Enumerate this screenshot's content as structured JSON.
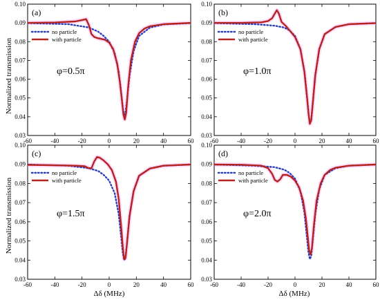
{
  "figure": {
    "ylabel": "Normalized transmission",
    "xlabel": "Δδ (MHz)"
  },
  "colors": {
    "no_particle": "#2b40b8",
    "with_particle": "#b5231f",
    "with_particle_glow": "#ff8cf0"
  },
  "chart_data": [
    {
      "type": "line",
      "panel": "(a)",
      "annotation": "φ=0.5π",
      "xlim": [
        -60,
        60
      ],
      "ylim": [
        0.03,
        0.1
      ],
      "xticks": [
        -60,
        -40,
        -20,
        0,
        20,
        40,
        60
      ],
      "yticks": [
        0.03,
        0.04,
        0.05,
        0.06,
        0.07,
        0.08,
        0.09,
        0.1
      ],
      "legend": "upper-left",
      "series": [
        {
          "name": "no particle",
          "style": "dotted",
          "x": [
            -60,
            -30,
            -15,
            -8,
            -4,
            0,
            4,
            7,
            9,
            10,
            11,
            12,
            13,
            15,
            18,
            22,
            30,
            40,
            60
          ],
          "y": [
            0.0899,
            0.0893,
            0.0876,
            0.0853,
            0.083,
            0.08,
            0.074,
            0.064,
            0.052,
            0.045,
            0.041,
            0.042,
            0.048,
            0.062,
            0.075,
            0.083,
            0.0875,
            0.0892,
            0.0899
          ]
        },
        {
          "name": "with particle",
          "style": "solid",
          "x": [
            -60,
            -40,
            -25,
            -20,
            -17,
            -15,
            -13,
            -11,
            -9,
            -6,
            -3,
            0,
            3,
            6,
            8,
            9.5,
            10.5,
            11.5,
            12.5,
            14,
            16,
            19,
            22,
            26,
            30,
            40,
            60
          ],
          "y": [
            0.09,
            0.0902,
            0.0908,
            0.0915,
            0.092,
            0.089,
            0.084,
            0.0825,
            0.082,
            0.0815,
            0.081,
            0.0795,
            0.076,
            0.068,
            0.058,
            0.048,
            0.041,
            0.0385,
            0.042,
            0.056,
            0.07,
            0.08,
            0.0845,
            0.087,
            0.0882,
            0.0893,
            0.09
          ]
        }
      ]
    },
    {
      "type": "line",
      "panel": "(b)",
      "annotation": "φ=1.0π",
      "xlim": [
        -60,
        60
      ],
      "ylim": [
        0.03,
        0.1
      ],
      "xticks": [
        -60,
        -40,
        -20,
        0,
        20,
        40,
        60
      ],
      "yticks": [
        0.03,
        0.04,
        0.05,
        0.06,
        0.07,
        0.08,
        0.09,
        0.1
      ],
      "legend": "upper-left",
      "series": [
        {
          "name": "no particle",
          "style": "dotted",
          "x": [
            -60,
            -30,
            -15,
            -8,
            -4,
            0,
            4,
            7,
            9,
            10,
            11,
            12,
            13,
            15,
            18,
            22,
            30,
            40,
            60
          ],
          "y": [
            0.0899,
            0.0893,
            0.0885,
            0.0875,
            0.086,
            0.083,
            0.076,
            0.064,
            0.05,
            0.042,
            0.0365,
            0.038,
            0.046,
            0.062,
            0.076,
            0.084,
            0.0878,
            0.0893,
            0.0899
          ]
        },
        {
          "name": "with particle",
          "style": "solid",
          "x": [
            -60,
            -40,
            -25,
            -20,
            -17,
            -15,
            -13.5,
            -12,
            -10,
            -7,
            -4,
            0,
            4,
            7,
            9,
            10,
            11,
            12,
            13,
            15,
            18,
            22,
            30,
            40,
            60
          ],
          "y": [
            0.09,
            0.09,
            0.0903,
            0.091,
            0.0925,
            0.095,
            0.0968,
            0.095,
            0.0905,
            0.0885,
            0.086,
            0.0825,
            0.076,
            0.064,
            0.05,
            0.042,
            0.0362,
            0.038,
            0.046,
            0.062,
            0.076,
            0.084,
            0.0878,
            0.0893,
            0.0899
          ]
        }
      ]
    },
    {
      "type": "line",
      "panel": "(c)",
      "annotation": "φ=1.5π",
      "xlim": [
        -60,
        60
      ],
      "ylim": [
        0.03,
        0.1
      ],
      "xticks": [
        -60,
        -40,
        -20,
        0,
        20,
        40,
        60
      ],
      "yticks": [
        0.03,
        0.04,
        0.05,
        0.06,
        0.07,
        0.08,
        0.09,
        0.1
      ],
      "legend": "upper-left",
      "series": [
        {
          "name": "no particle",
          "style": "dotted",
          "x": [
            -60,
            -30,
            -15,
            -8,
            -4,
            0,
            4,
            7,
            9,
            10,
            11,
            12,
            13,
            15,
            18,
            22,
            30,
            40,
            60
          ],
          "y": [
            0.0899,
            0.0893,
            0.088,
            0.0865,
            0.0845,
            0.0815,
            0.075,
            0.064,
            0.051,
            0.044,
            0.04,
            0.041,
            0.048,
            0.063,
            0.076,
            0.084,
            0.0878,
            0.0893,
            0.0899
          ]
        },
        {
          "name": "with particle",
          "style": "solid",
          "x": [
            -60,
            -40,
            -25,
            -18,
            -15,
            -13,
            -11,
            -9,
            -7,
            -4,
            -1,
            2,
            5,
            7,
            9,
            10,
            11,
            12,
            13,
            15,
            18,
            22,
            30,
            40,
            60
          ],
          "y": [
            0.0897,
            0.0895,
            0.0893,
            0.089,
            0.088,
            0.088,
            0.0915,
            0.0938,
            0.0935,
            0.092,
            0.09,
            0.087,
            0.081,
            0.072,
            0.056,
            0.047,
            0.0405,
            0.041,
            0.048,
            0.063,
            0.076,
            0.084,
            0.0878,
            0.0893,
            0.0899
          ]
        }
      ]
    },
    {
      "type": "line",
      "panel": "(d)",
      "annotation": "φ=2.0π",
      "xlim": [
        -60,
        60
      ],
      "ylim": [
        0.03,
        0.1
      ],
      "xticks": [
        -60,
        -40,
        -20,
        0,
        20,
        40,
        60
      ],
      "yticks": [
        0.03,
        0.04,
        0.05,
        0.06,
        0.07,
        0.08,
        0.09,
        0.1
      ],
      "legend": "upper-left",
      "series": [
        {
          "name": "no particle",
          "style": "dotted",
          "x": [
            -60,
            -30,
            -15,
            -8,
            -4,
            0,
            4,
            7,
            9,
            10,
            11,
            12,
            13,
            15,
            18,
            22,
            30,
            40,
            60
          ],
          "y": [
            0.0899,
            0.0893,
            0.0885,
            0.0872,
            0.0855,
            0.0825,
            0.076,
            0.065,
            0.051,
            0.044,
            0.0405,
            0.042,
            0.049,
            0.064,
            0.077,
            0.0845,
            0.088,
            0.0893,
            0.0899
          ]
        },
        {
          "name": "with particle",
          "style": "solid",
          "x": [
            -60,
            -40,
            -25,
            -20,
            -17,
            -15,
            -13,
            -11,
            -9,
            -6,
            -3,
            0,
            3,
            6,
            8,
            9.5,
            10.5,
            11.5,
            12.5,
            14,
            16,
            19,
            22,
            26,
            30,
            40,
            60
          ],
          "y": [
            0.0899,
            0.0898,
            0.0893,
            0.088,
            0.085,
            0.0818,
            0.081,
            0.0822,
            0.0845,
            0.0845,
            0.0835,
            0.0815,
            0.078,
            0.071,
            0.062,
            0.052,
            0.045,
            0.043,
            0.046,
            0.058,
            0.071,
            0.08,
            0.0845,
            0.087,
            0.0882,
            0.0893,
            0.0899
          ]
        }
      ]
    }
  ]
}
